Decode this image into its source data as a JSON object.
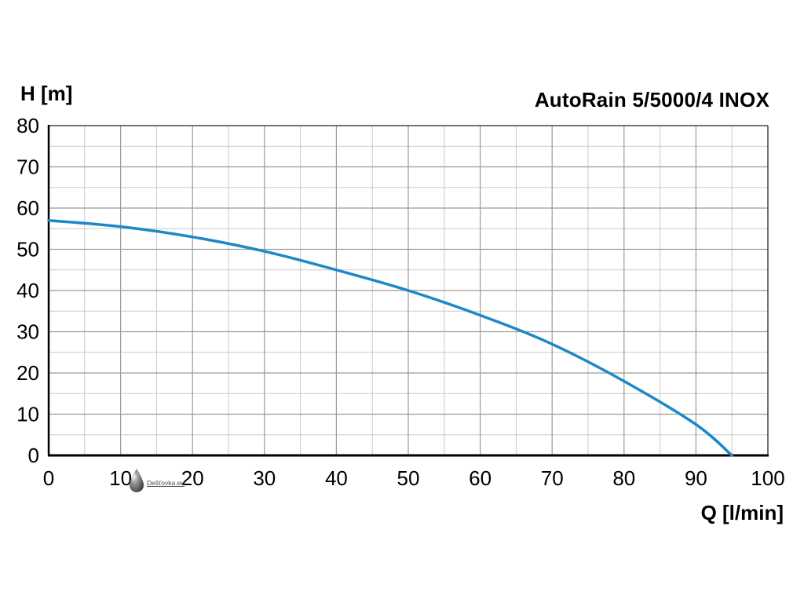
{
  "page": {
    "y_axis_label": "H [m]",
    "x_axis_label": "Q [l/min]",
    "title": "AutoRain 5/5000/4 INOX",
    "watermark_text": "Dešťovka.eu"
  },
  "chart_data": {
    "type": "line",
    "title": "AutoRain 5/5000/4 INOX",
    "xlabel": "Q [l/min]",
    "ylabel": "H [m]",
    "xlim": [
      0,
      100
    ],
    "ylim": [
      0,
      80
    ],
    "x_tick_step": 10,
    "y_tick_step": 10,
    "minor_grid_step": 5,
    "grid": true,
    "legend": "none",
    "colors": {
      "curve": "#1e88c7",
      "major_grid": "#9a9a9a",
      "minor_grid": "#c9c9c9",
      "axis": "#000000"
    },
    "series": [
      {
        "name": "AutoRain 5/5000/4 INOX pump curve",
        "x": [
          0,
          10,
          20,
          30,
          40,
          50,
          60,
          70,
          80,
          90,
          95
        ],
        "y": [
          57,
          55.5,
          53,
          49.5,
          45,
          40,
          34,
          27,
          18,
          7.5,
          0
        ]
      }
    ]
  }
}
